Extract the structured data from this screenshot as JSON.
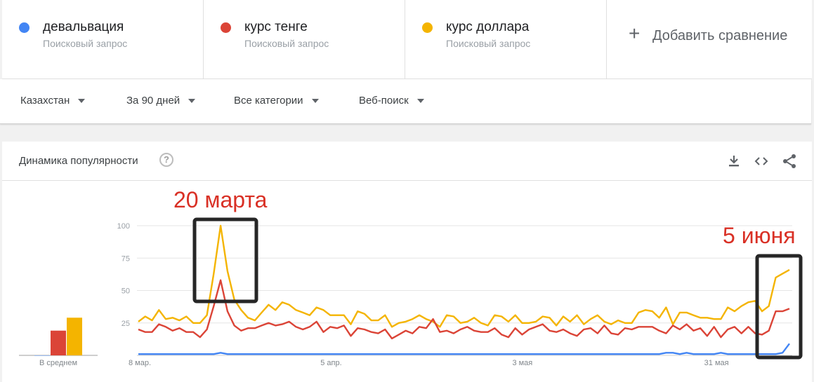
{
  "terms": [
    {
      "name": "девальвация",
      "sub": "Поисковый запрос",
      "color": "#4285f4"
    },
    {
      "name": "курс тенге",
      "sub": "Поисковый запрос",
      "color": "#db4437"
    },
    {
      "name": "курс доллара",
      "sub": "Поисковый запрос",
      "color": "#f4b400"
    }
  ],
  "add_compare": {
    "icon": "plus-icon",
    "label": "Добавить сравнение"
  },
  "filters": {
    "region": "Казахстан",
    "period": "За 90 дней",
    "category": "Все категории",
    "search_type": "Веб-поиск"
  },
  "card": {
    "title": "Динамика популярности",
    "help_glyph": "?",
    "icons": [
      "download-icon",
      "embed-icon",
      "share-icon"
    ]
  },
  "annotations": {
    "left": "20 марта",
    "right": "5 июня"
  },
  "chart_data": {
    "type": "line",
    "y_ticks": [
      "100",
      "75",
      "50",
      "25"
    ],
    "ylim": [
      0,
      100
    ],
    "x_tick_labels": [
      "8 мар.",
      "5 апр.",
      "3 мая",
      "31 мая"
    ],
    "x_tick_index": [
      0,
      28,
      56,
      84
    ],
    "average": {
      "label": "В среднем",
      "values": [
        0,
        21,
        32
      ]
    },
    "series": [
      {
        "name": "курс доллара",
        "color": "#f4b400",
        "values": [
          26,
          30,
          27,
          35,
          28,
          29,
          27,
          30,
          25,
          25,
          31,
          63,
          100,
          65,
          43,
          35,
          29,
          27,
          33,
          39,
          35,
          41,
          39,
          35,
          33,
          31,
          37,
          35,
          31,
          31,
          31,
          24,
          34,
          32,
          27,
          27,
          31,
          22,
          25,
          26,
          28,
          31,
          28,
          26,
          22,
          31,
          30,
          25,
          26,
          29,
          25,
          23,
          31,
          30,
          26,
          31,
          25,
          25,
          26,
          30,
          29,
          23,
          30,
          26,
          31,
          24,
          28,
          31,
          26,
          24,
          27,
          25,
          25,
          33,
          35,
          34,
          29,
          37,
          24,
          33,
          33,
          31,
          29,
          29,
          28,
          28,
          37,
          34,
          38,
          41,
          42,
          34,
          38,
          60,
          63,
          66
        ]
      },
      {
        "name": "курс тенге",
        "color": "#db4437",
        "values": [
          20,
          18,
          18,
          24,
          22,
          19,
          21,
          18,
          18,
          14,
          20,
          38,
          58,
          34,
          23,
          19,
          21,
          21,
          23,
          25,
          23,
          24,
          26,
          22,
          20,
          22,
          26,
          18,
          22,
          21,
          23,
          15,
          21,
          20,
          18,
          17,
          20,
          13,
          16,
          19,
          17,
          22,
          21,
          28,
          18,
          19,
          17,
          20,
          22,
          19,
          18,
          18,
          21,
          16,
          14,
          21,
          16,
          20,
          22,
          24,
          19,
          18,
          20,
          17,
          15,
          20,
          21,
          17,
          23,
          17,
          16,
          21,
          20,
          22,
          22,
          22,
          19,
          17,
          23,
          20,
          24,
          19,
          21,
          15,
          22,
          14,
          20,
          22,
          17,
          22,
          17,
          16,
          19,
          34,
          34,
          36
        ]
      },
      {
        "name": "девальвация",
        "color": "#4285f4",
        "values": [
          1,
          1,
          1,
          1,
          1,
          1,
          1,
          1,
          1,
          1,
          1,
          1,
          2,
          1,
          1,
          1,
          1,
          1,
          1,
          1,
          1,
          1,
          1,
          1,
          1,
          1,
          1,
          1,
          1,
          1,
          1,
          1,
          1,
          1,
          1,
          1,
          1,
          1,
          1,
          1,
          1,
          1,
          1,
          1,
          1,
          1,
          1,
          1,
          1,
          1,
          1,
          1,
          1,
          1,
          1,
          1,
          1,
          1,
          1,
          1,
          1,
          1,
          1,
          1,
          1,
          1,
          1,
          1,
          1,
          1,
          1,
          1,
          1,
          1,
          1,
          1,
          1,
          2,
          2,
          1,
          2,
          1,
          1,
          1,
          1,
          2,
          1,
          1,
          1,
          1,
          1,
          1,
          1,
          1,
          2,
          9
        ]
      }
    ]
  }
}
